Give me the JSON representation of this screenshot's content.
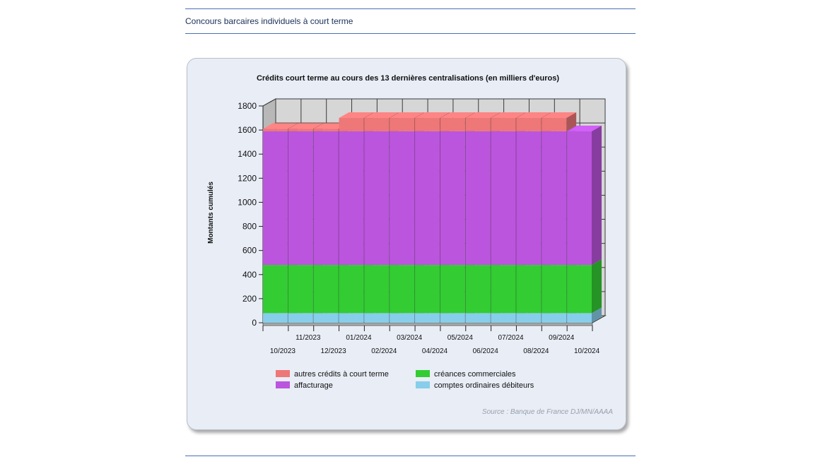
{
  "page": {
    "heading": "Concours barcaires individuels à court terme"
  },
  "chart_data": {
    "type": "bar",
    "stacked": true,
    "title": "Crédits court terme au cours des 13 dernières centralisations (en milliers d'euros)",
    "xlabel": "",
    "ylabel": "Montants cumulés",
    "ylim": [
      0,
      1800
    ],
    "yticks": [
      0,
      200,
      400,
      600,
      800,
      1000,
      1200,
      1400,
      1600,
      1800
    ],
    "grid": true,
    "categories": [
      "10/2023",
      "11/2023",
      "12/2023",
      "01/2024",
      "02/2024",
      "03/2024",
      "04/2024",
      "05/2024",
      "06/2024",
      "07/2024",
      "08/2024",
      "09/2024",
      "10/2024"
    ],
    "series": [
      {
        "name": "comptes ordinaires débiteurs",
        "color": "#87ceeb",
        "values": [
          80,
          80,
          80,
          80,
          80,
          80,
          80,
          80,
          80,
          80,
          80,
          80,
          80
        ]
      },
      {
        "name": "créances commerciales",
        "color": "#33cc33",
        "values": [
          400,
          400,
          400,
          400,
          400,
          400,
          400,
          400,
          400,
          400,
          400,
          400,
          400
        ]
      },
      {
        "name": "affacturage",
        "color": "#bb55dd",
        "values": [
          1110,
          1110,
          1110,
          1110,
          1110,
          1110,
          1110,
          1110,
          1110,
          1110,
          1110,
          1110,
          1110
        ]
      },
      {
        "name": "autres crédits à court terme",
        "color": "#ee7777",
        "values": [
          20,
          20,
          20,
          110,
          110,
          110,
          110,
          110,
          110,
          110,
          110,
          110,
          0
        ]
      }
    ],
    "legend": {
      "position": "bottom",
      "order": [
        "autres crédits à court terme",
        "créances commerciales",
        "affacturage",
        "comptes ordinaires débiteurs"
      ]
    },
    "source": "Source : Banque de France DJ/MN/AAAA"
  }
}
